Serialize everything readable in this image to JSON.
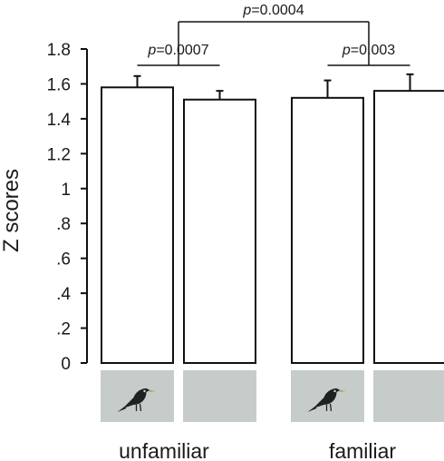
{
  "chart_data": {
    "type": "bar",
    "ylabel": "Z scores",
    "ylim": [
      0,
      1.8
    ],
    "yticks": [
      {
        "value": 0,
        "label": "0"
      },
      {
        "value": 0.2,
        "label": ".2"
      },
      {
        "value": 0.4,
        "label": ".4"
      },
      {
        "value": 0.6,
        "label": ".6"
      },
      {
        "value": 0.8,
        "label": ".8"
      },
      {
        "value": 1.0,
        "label": "1"
      },
      {
        "value": 1.2,
        "label": "1.2"
      },
      {
        "value": 1.4,
        "label": "1.4"
      },
      {
        "value": 1.6,
        "label": "1.6"
      },
      {
        "value": 1.8,
        "label": "1.8"
      }
    ],
    "groups": [
      "unfamiliar",
      "familiar"
    ],
    "bars": [
      {
        "group": "unfamiliar",
        "condition": "bird image",
        "value": 1.58,
        "error": 0.065
      },
      {
        "group": "unfamiliar",
        "condition": "blank",
        "value": 1.51,
        "error": 0.05
      },
      {
        "group": "familiar",
        "condition": "bird image",
        "value": 1.52,
        "error": 0.1
      },
      {
        "group": "familiar",
        "condition": "blank",
        "value": 1.56,
        "error": 0.095
      }
    ],
    "comparisons": [
      {
        "between": "unfamiliar bird vs unfamiliar blank",
        "p_prefix": "p",
        "p_value": "=0.0007"
      },
      {
        "between": "familiar bird vs familiar blank",
        "p_prefix": "p",
        "p_value": "=0.003"
      },
      {
        "between": "unfamiliar vs familiar",
        "p_prefix": "p",
        "p_value": "=0.0004"
      }
    ],
    "stimulus_panels": [
      {
        "icon": "bird-icon",
        "color": "#c6ccca"
      },
      {
        "icon": "none",
        "color": "#c6ccca"
      },
      {
        "icon": "bird-icon",
        "color": "#c6ccca"
      },
      {
        "icon": "none",
        "color": "#c6ccca"
      }
    ]
  }
}
